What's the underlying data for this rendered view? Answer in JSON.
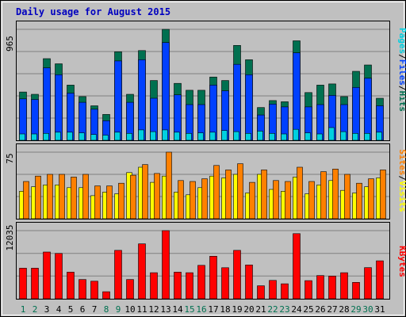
{
  "chart_data": {
    "type": "bar",
    "title": "Daily usage for August 2015",
    "colors": {
      "background": "#c0c0c0",
      "frame": "#808080",
      "title": "#0000c0",
      "hits": "#007050",
      "files": "#0040ff",
      "pages": "#00d0e0",
      "visits": "#ffff00",
      "sites": "#ff8000",
      "kbytes": "#ff0000",
      "weekend": "#007050",
      "weekday": "#000000"
    },
    "categories": [
      "1",
      "2",
      "3",
      "4",
      "5",
      "6",
      "7",
      "8",
      "9",
      "10",
      "11",
      "12",
      "13",
      "14",
      "15",
      "16",
      "17",
      "18",
      "19",
      "20",
      "21",
      "22",
      "23",
      "24",
      "25",
      "26",
      "27",
      "28",
      "29",
      "30",
      "31"
    ],
    "weekend_days": [
      "1",
      "2",
      "8",
      "9",
      "15",
      "16",
      "22",
      "23",
      "29",
      "30"
    ],
    "panels": [
      {
        "id": "hits",
        "max_label": "965",
        "ymax": 965,
        "legend": [
          {
            "text": "Pages",
            "color": "#00d0e0"
          },
          {
            "text": "/",
            "color": "#000000"
          },
          {
            "text": "Files",
            "color": "#0040ff"
          },
          {
            "text": "/",
            "color": "#000000"
          },
          {
            "text": "Hits",
            "color": "#007050"
          }
        ],
        "series": [
          {
            "name": "Hits",
            "color": "#007050",
            "values": [
              420,
              400,
              710,
              665,
              480,
              380,
              300,
              225,
              770,
              400,
              780,
              520,
              965,
              495,
              435,
              435,
              550,
              520,
              825,
              700,
              285,
              345,
              335,
              865,
              415,
              480,
              490,
              380,
              600,
              655,
              365
            ]
          },
          {
            "name": "Files",
            "color": "#0040ff",
            "values": [
              360,
              355,
              630,
              570,
              410,
              330,
              270,
              170,
              690,
              330,
              700,
              365,
              850,
              395,
              310,
              310,
              480,
              430,
              660,
              570,
              220,
              315,
              290,
              760,
              290,
              310,
              390,
              310,
              460,
              540,
              300
            ]
          },
          {
            "name": "Pages",
            "color": "#00d0e0",
            "values": [
              55,
              55,
              60,
              70,
              70,
              65,
              50,
              45,
              70,
              60,
              90,
              75,
              90,
              70,
              60,
              65,
              70,
              85,
              75,
              60,
              80,
              60,
              55,
              95,
              65,
              55,
              110,
              75,
              60,
              60,
              70
            ]
          }
        ]
      },
      {
        "id": "visits",
        "max_label": "75",
        "ymax": 75,
        "legend": [
          {
            "text": "Sites",
            "color": "#ff8000"
          },
          {
            "text": "/",
            "color": "#000000"
          },
          {
            "text": "Visits",
            "color": "#ffff00"
          }
        ],
        "series": [
          {
            "name": "Visits",
            "color": "#ffff00",
            "values": [
              31,
              36,
              38,
              38,
              35,
              35,
              26,
              30,
              28,
              52,
              58,
              41,
              48,
              30,
              27,
              35,
              48,
              46,
              50,
              29,
              50,
              33,
              31,
              47,
              28,
              38,
              43,
              32,
              29,
              36,
              46
            ]
          },
          {
            "name": "Sites",
            "color": "#ff8000",
            "values": [
              42,
              48,
              50,
              50,
              47,
              50,
              37,
              37,
              40,
              49,
              61,
              51,
              75,
              43,
              42,
              45,
              60,
              55,
              62,
              41,
              55,
              43,
              42,
              58,
              42,
              53,
              56,
              50,
              40,
              45,
              55
            ]
          }
        ]
      },
      {
        "id": "kbytes",
        "max_label": "12035",
        "ymax": 12035,
        "legend": [
          {
            "text": "KBytes",
            "color": "#ff0000"
          }
        ],
        "series": [
          {
            "name": "KBytes",
            "color": "#ff0000",
            "values": [
              5400,
              5400,
              8250,
              8000,
              4700,
              3400,
              3100,
              1250,
              8550,
              3400,
              9700,
              4600,
              12035,
              4700,
              4600,
              5910,
              7510,
              5490,
              8550,
              5980,
              2300,
              3250,
              2650,
              11500,
              3200,
              4100,
              4000,
              4600,
              2900,
              5500,
              6700
            ]
          }
        ]
      }
    ]
  }
}
